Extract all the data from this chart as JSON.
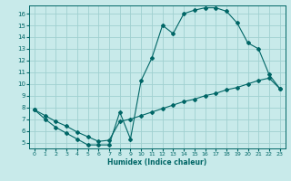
{
  "xlabel": "Humidex (Indice chaleur)",
  "bg_color": "#c8eaea",
  "line_color": "#006666",
  "grid_color": "#a0d0d0",
  "xlim": [
    -0.5,
    23.5
  ],
  "ylim": [
    4.5,
    16.7
  ],
  "xticks": [
    0,
    1,
    2,
    3,
    4,
    5,
    6,
    7,
    8,
    9,
    10,
    11,
    12,
    13,
    14,
    15,
    16,
    17,
    18,
    19,
    20,
    21,
    22,
    23
  ],
  "yticks": [
    5,
    6,
    7,
    8,
    9,
    10,
    11,
    12,
    13,
    14,
    15,
    16
  ],
  "curve1_x": [
    0,
    1,
    2,
    3,
    4,
    5,
    6,
    7,
    8,
    9,
    10,
    11,
    12,
    13,
    14,
    15,
    16,
    17,
    18,
    19,
    20,
    21,
    22,
    23
  ],
  "curve1_y": [
    7.8,
    7.0,
    6.3,
    5.8,
    5.3,
    4.8,
    4.8,
    4.8,
    7.6,
    5.3,
    10.3,
    12.2,
    15.0,
    14.3,
    16.0,
    16.3,
    16.5,
    16.5,
    16.2,
    15.2,
    13.5,
    13.0,
    10.8,
    9.6
  ],
  "curve2_x": [
    0,
    1,
    2,
    3,
    4,
    5,
    6,
    7,
    8,
    9,
    10,
    11,
    12,
    13,
    14,
    15,
    16,
    17,
    18,
    19,
    20,
    21,
    22,
    23
  ],
  "curve2_y": [
    7.8,
    7.3,
    6.8,
    6.4,
    5.9,
    5.5,
    5.1,
    5.2,
    6.8,
    7.0,
    7.3,
    7.6,
    7.9,
    8.2,
    8.5,
    8.7,
    9.0,
    9.2,
    9.5,
    9.7,
    10.0,
    10.3,
    10.5,
    9.6
  ]
}
